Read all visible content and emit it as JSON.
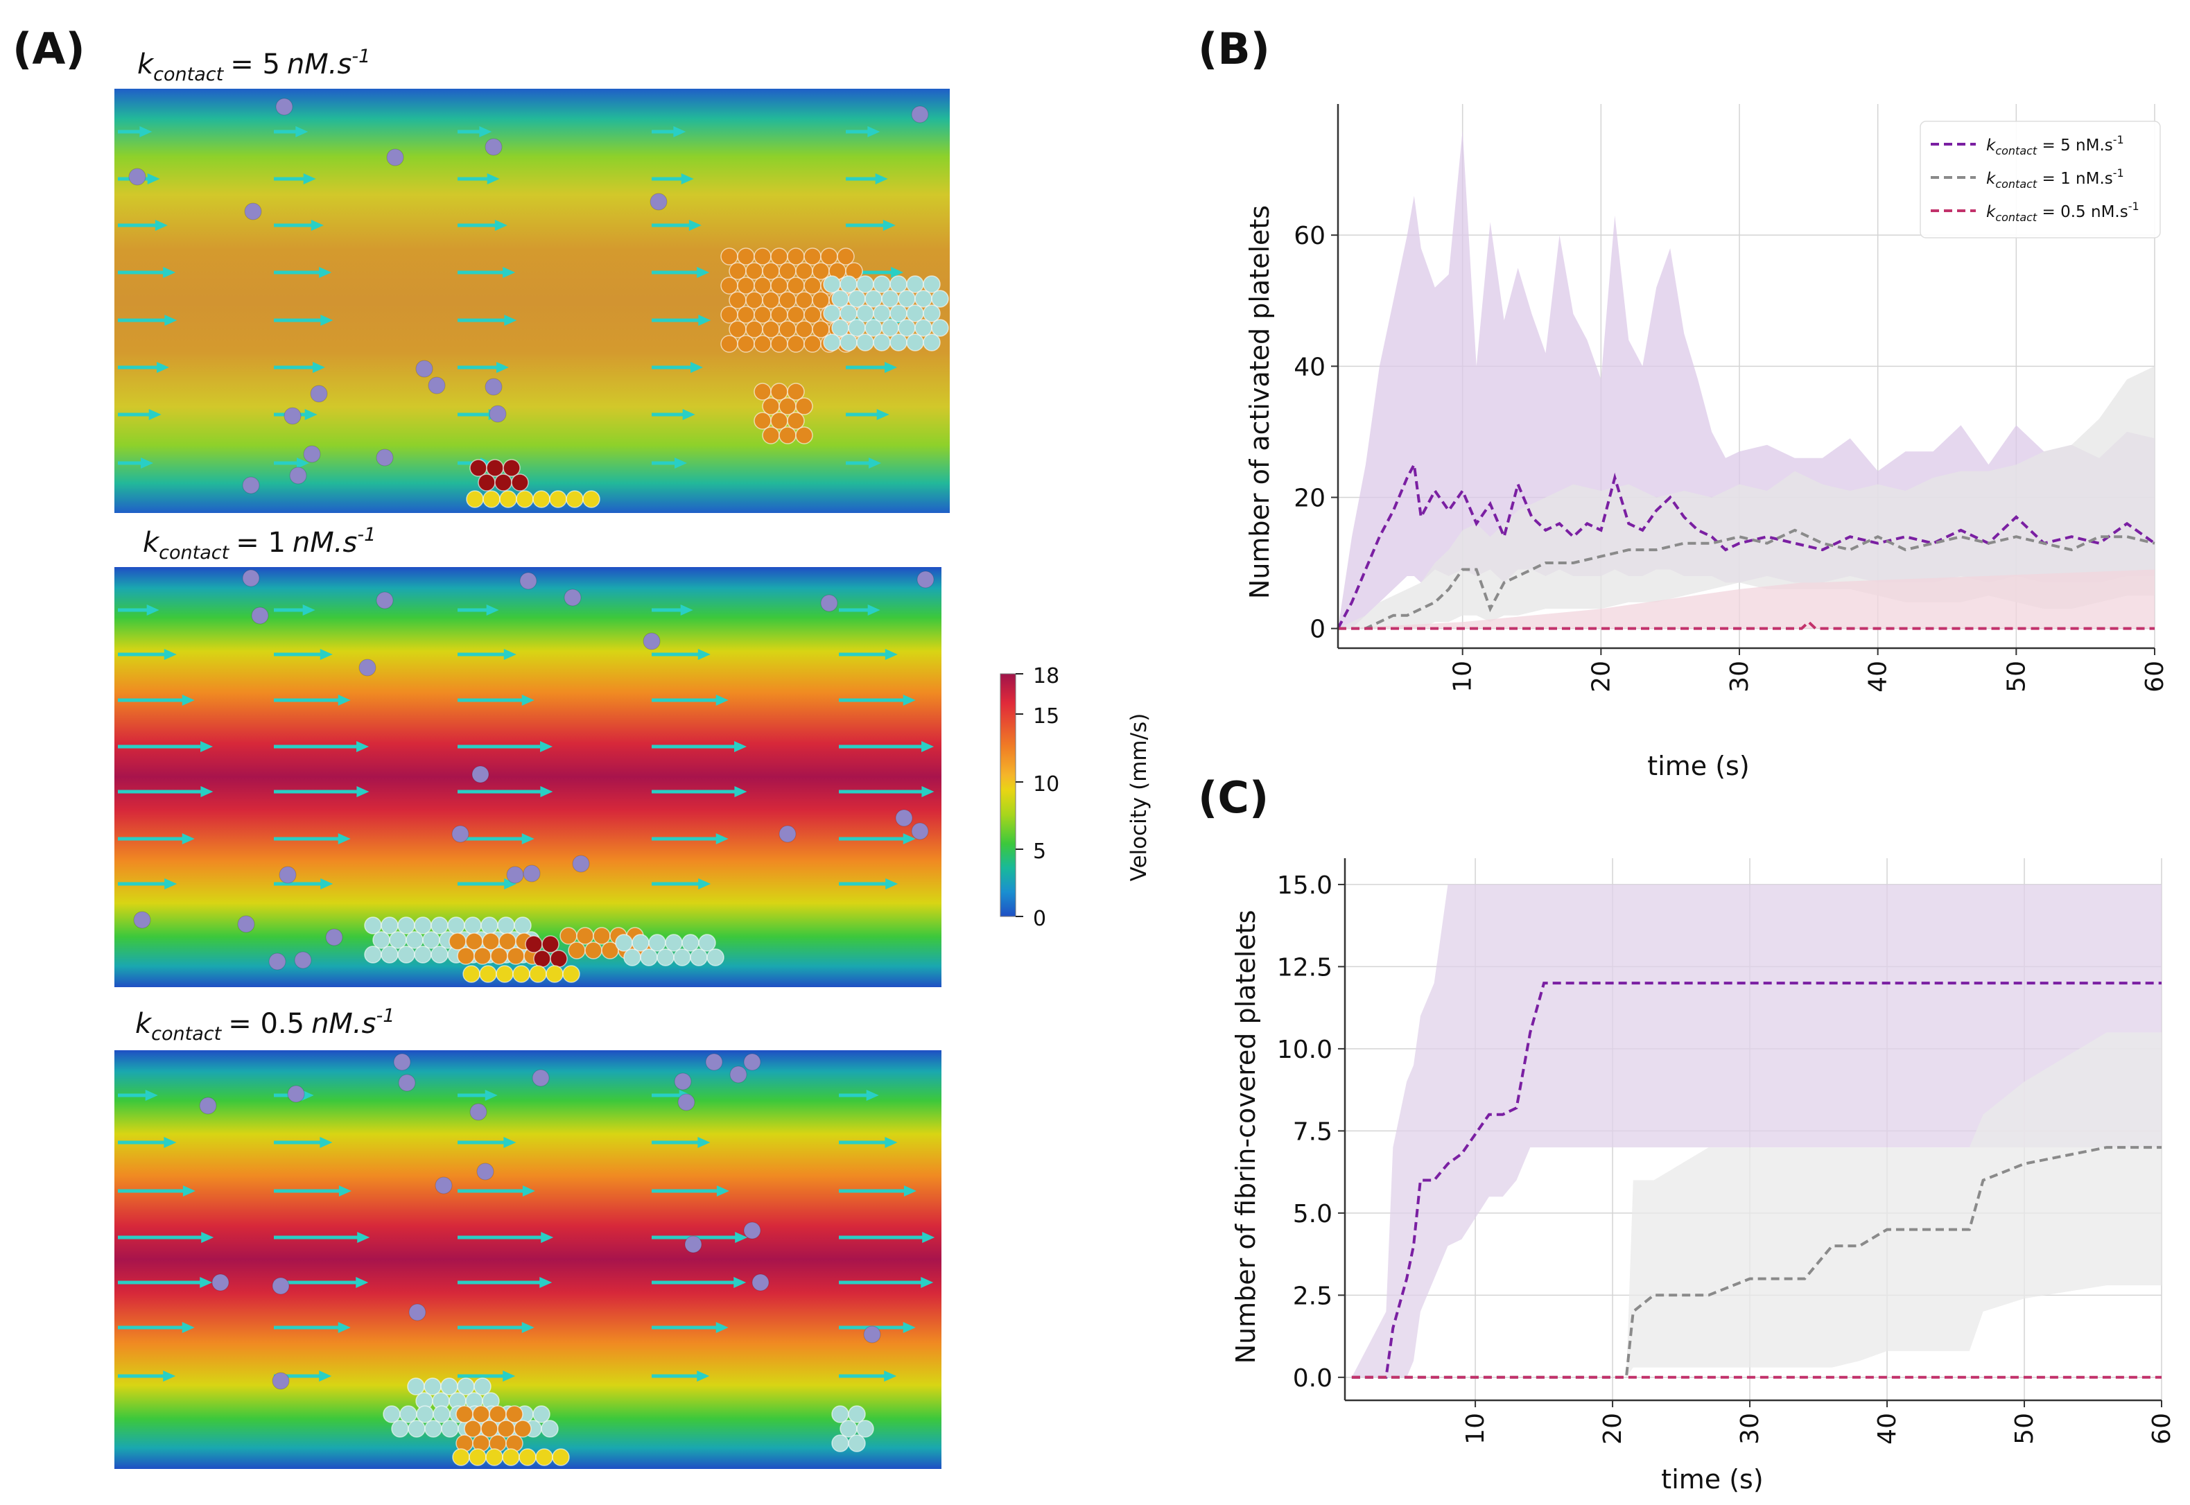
{
  "figure": {
    "panel_a_label": "(A)",
    "panel_b_label": "(B)",
    "panel_c_label": "(C)"
  },
  "panel_a": {
    "k_symbol": "k",
    "k_subscript": "contact",
    "simulations": [
      {
        "k_value": "= 5",
        "k_unit": "nM.s",
        "k_unit_exp": "-1"
      },
      {
        "k_value": "= 1",
        "k_unit": "nM.s",
        "k_unit_exp": "-1"
      },
      {
        "k_value": "= 0.5",
        "k_unit": "nM.s",
        "k_unit_exp": "-1"
      }
    ],
    "colorbar": {
      "label": "Velocity (mm/s)",
      "ticks": [
        "18",
        "15",
        "10",
        "5",
        "0"
      ],
      "colors": [
        "#a0144a",
        "#e02a3a",
        "#f07d25",
        "#f5b62a",
        "#e8d514",
        "#a8d61c",
        "#3cc83c",
        "#19b99a",
        "#1a8fd0",
        "#1f4fc4"
      ]
    },
    "colors": {
      "platelet_resting": "#8f86c8",
      "platelet_light": "#a8dcd8",
      "platelet_orange": "#e2891e",
      "platelet_red": "#990f12",
      "platelet_yellow": "#ecd51a",
      "arrow": "#29cfc5"
    }
  },
  "chart_data": [
    {
      "type": "line",
      "panel": "(B)",
      "xlabel": "time (s)",
      "ylabel": "Number of activated platelets",
      "xlim": [
        1,
        60
      ],
      "ylim": [
        -3,
        80
      ],
      "xticks": [
        10,
        20,
        30,
        40,
        50,
        60
      ],
      "yticks": [
        0,
        20,
        40,
        60
      ],
      "grid": true,
      "legend_position": "top-right",
      "series": [
        {
          "label_k": "k",
          "label_sub": "contact",
          "label_rest": " = 5 nM.s",
          "label_exp": "-1",
          "color": "#7a1fa2",
          "band_color": "#dcc9e8",
          "x": [
            1,
            2,
            3,
            4,
            5,
            6,
            6.5,
            7,
            8,
            9,
            10,
            11,
            12,
            13,
            14,
            15,
            16,
            17,
            18,
            19,
            20,
            21,
            22,
            23,
            24,
            25,
            26,
            27,
            28,
            29,
            30,
            32,
            34,
            36,
            38,
            40,
            42,
            44,
            46,
            48,
            50,
            52,
            54,
            56,
            58,
            60
          ],
          "y": [
            0,
            4,
            9,
            14,
            18,
            23,
            25,
            17,
            21,
            18,
            21,
            16,
            19,
            14,
            22,
            17,
            15,
            16,
            14,
            16,
            15,
            23,
            16,
            15,
            18,
            20,
            17,
            15,
            14,
            12,
            13,
            14,
            13,
            12,
            14,
            13,
            14,
            13,
            15,
            13,
            17,
            13,
            14,
            13,
            16,
            13
          ],
          "upper": [
            0,
            14,
            25,
            40,
            50,
            60,
            66,
            58,
            52,
            54,
            76,
            40,
            62,
            47,
            55,
            48,
            42,
            60,
            48,
            44,
            38,
            63,
            44,
            40,
            52,
            58,
            45,
            38,
            30,
            26,
            27,
            28,
            26,
            26,
            29,
            24,
            27,
            27,
            31,
            25,
            31,
            27,
            28,
            26,
            30,
            29
          ],
          "lower": [
            0,
            0,
            2,
            4,
            6,
            8,
            8,
            7,
            9,
            8,
            9,
            8,
            9,
            7,
            9,
            9,
            8,
            9,
            8,
            8,
            8,
            9,
            8,
            8,
            9,
            9,
            8,
            8,
            8,
            7,
            7,
            8,
            7,
            7,
            8,
            7,
            7,
            7,
            8,
            7,
            8,
            7,
            7,
            7,
            8,
            8
          ]
        },
        {
          "label_k": "k",
          "label_sub": "contact",
          "label_rest": " = 1 nM.s",
          "label_exp": "-1",
          "color": "#8a8a8a",
          "band_color": "#e6e6e6",
          "x": [
            1,
            3,
            4,
            5,
            6,
            7,
            8,
            9,
            10,
            11,
            12,
            13,
            14,
            16,
            18,
            20,
            22,
            24,
            26,
            28,
            30,
            32,
            34,
            36,
            38,
            40,
            42,
            44,
            46,
            48,
            50,
            52,
            54,
            56,
            58,
            60
          ],
          "y": [
            0,
            0,
            1,
            2,
            2,
            3,
            4,
            6,
            9,
            9,
            3,
            7,
            8,
            10,
            10,
            11,
            12,
            12,
            13,
            13,
            14,
            13,
            15,
            13,
            12,
            14,
            12,
            13,
            14,
            13,
            14,
            13,
            12,
            14,
            14,
            13
          ],
          "upper": [
            0,
            2,
            4,
            5,
            6,
            7,
            10,
            12,
            15,
            16,
            14,
            16,
            18,
            20,
            22,
            21,
            22,
            20,
            21,
            20,
            22,
            21,
            24,
            22,
            21,
            22,
            21,
            23,
            24,
            24,
            25,
            27,
            28,
            32,
            38,
            40
          ],
          "lower": [
            0,
            0,
            0,
            0,
            0,
            0,
            1,
            1,
            2,
            2,
            1,
            2,
            2,
            3,
            3,
            3,
            4,
            4,
            5,
            6,
            7,
            6,
            6,
            6,
            6,
            5,
            4,
            4,
            4,
            5,
            4,
            3,
            3,
            4,
            5,
            5
          ]
        },
        {
          "label_k": "k",
          "label_sub": "contact",
          "label_rest": " = 0.5 nM.s",
          "label_exp": "-1",
          "color": "#c2326b",
          "band_color": "#f1d6de",
          "x": [
            1,
            10,
            20,
            30,
            34.5,
            35,
            35.5,
            60
          ],
          "y": [
            0,
            0,
            0,
            0,
            0,
            1,
            0,
            0
          ],
          "upper": [
            0,
            1,
            3,
            6,
            7,
            7,
            7,
            9
          ],
          "lower": [
            0,
            0,
            0,
            0,
            0,
            0,
            0,
            0
          ]
        }
      ]
    },
    {
      "type": "line",
      "panel": "(C)",
      "xlabel": "time (s)",
      "ylabel": "Number of fibrin-covered platelets",
      "xlim": [
        0.5,
        60
      ],
      "ylim": [
        -0.7,
        15.8
      ],
      "xticks": [
        10,
        20,
        30,
        40,
        50,
        60
      ],
      "yticks": [
        0.0,
        2.5,
        5.0,
        7.5,
        10.0,
        12.5,
        15.0
      ],
      "ytick_labels": [
        "0.0",
        "2.5",
        "5.0",
        "7.5",
        "10.0",
        "12.5",
        "15.0"
      ],
      "grid": true,
      "series": [
        {
          "name": "5",
          "color": "#7a1fa2",
          "band_color": "#e0d1ea",
          "x": [
            1,
            3.5,
            4,
            5,
            5.5,
            6,
            7,
            8,
            9,
            11,
            12,
            13,
            14,
            15,
            60
          ],
          "y": [
            0,
            0,
            1.5,
            3,
            4,
            6,
            6,
            6.5,
            6.8,
            8,
            8,
            8.2,
            10.5,
            12,
            12
          ],
          "upper": [
            0,
            2,
            7,
            9,
            9.5,
            11,
            12,
            15,
            15,
            15,
            15,
            15,
            15,
            15,
            15
          ],
          "lower": [
            0,
            0,
            0,
            0,
            0.5,
            2,
            3,
            4,
            4.2,
            5.5,
            5.5,
            6,
            7,
            7,
            7
          ]
        },
        {
          "name": "1",
          "color": "#8a8a8a",
          "band_color": "#e9e9e9",
          "x": [
            1,
            21,
            21.5,
            23,
            27,
            30,
            34,
            36,
            38,
            40,
            46,
            47,
            50,
            56,
            60
          ],
          "y": [
            0,
            0,
            2,
            2.5,
            2.5,
            3,
            3,
            4,
            4,
            4.5,
            4.5,
            6,
            6.5,
            7,
            7
          ],
          "upper": [
            0,
            0,
            6,
            6,
            7,
            7,
            7,
            7,
            7,
            7,
            7,
            8,
            9,
            10.5,
            10.5
          ],
          "lower": [
            0,
            0,
            0.3,
            0.3,
            0.3,
            0.3,
            0.3,
            0.3,
            0.5,
            0.8,
            0.8,
            2,
            2.4,
            2.8,
            2.8
          ]
        },
        {
          "name": "0.5",
          "color": "#c2326b",
          "band_color": "#f1d6de",
          "x": [
            1,
            60
          ],
          "y": [
            0,
            0
          ],
          "upper": [
            0,
            0
          ],
          "lower": [
            0,
            0
          ]
        }
      ]
    }
  ]
}
